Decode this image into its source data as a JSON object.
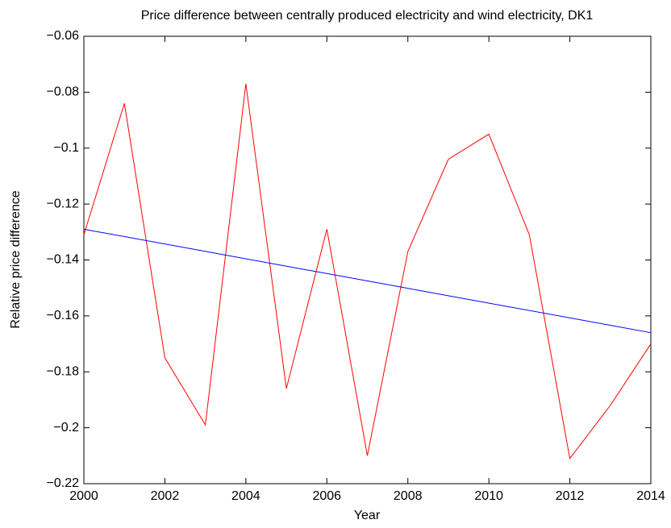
{
  "chart_data": {
    "type": "line",
    "title": "Price difference between centrally produced electricity and wind electricity, DK1",
    "x_label": "Year",
    "y_label": "Relative price difference",
    "series": [
      {
        "color": "#ff0000",
        "x": [
          2000,
          2001,
          2002,
          2003,
          2004,
          2005,
          2006,
          2007,
          2008,
          2009,
          2010,
          2011,
          2012,
          2013,
          2014
        ],
        "values": [
          -0.131,
          -0.084,
          -0.175,
          -0.199,
          -0.077,
          -0.186,
          -0.129,
          -0.21,
          -0.137,
          -0.104,
          -0.095,
          -0.131,
          -0.211,
          -0.192,
          -0.17
        ]
      },
      {
        "color": "#0000ff",
        "x": [
          2000,
          2014
        ],
        "values": [
          -0.129,
          -0.166
        ]
      }
    ],
    "xlim": [
      2000,
      2014
    ],
    "xticks": [
      2000,
      2002,
      2004,
      2006,
      2008,
      2010,
      2012,
      2014
    ],
    "ylim": [
      -0.22,
      -0.06
    ],
    "yticks": [
      {
        "value": -0.22,
        "label": "−0.22"
      },
      {
        "value": -0.2,
        "label": "−0.2"
      },
      {
        "value": -0.18,
        "label": "−0.18"
      },
      {
        "value": -0.16,
        "label": "−0.16"
      },
      {
        "value": -0.14,
        "label": "−0.14"
      },
      {
        "value": -0.12,
        "label": "−0.12"
      },
      {
        "value": -0.1,
        "label": "−0.1"
      },
      {
        "value": -0.08,
        "label": "−0.08"
      },
      {
        "value": -0.06,
        "label": "−0.06"
      }
    ],
    "grid": false
  }
}
